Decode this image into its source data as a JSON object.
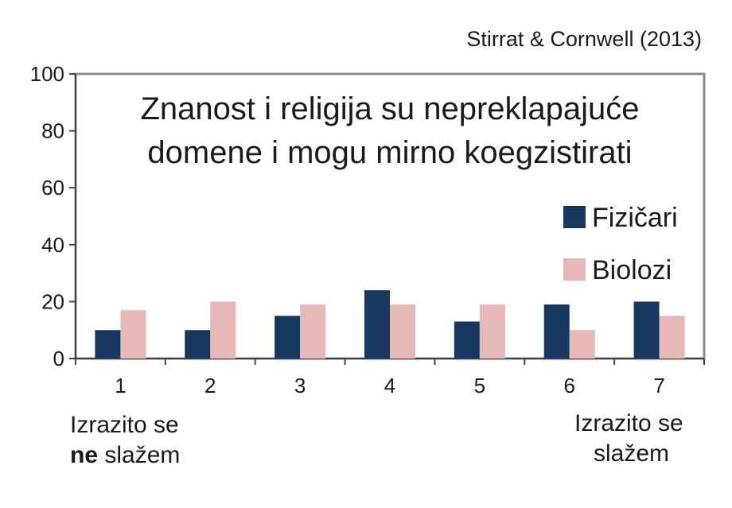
{
  "source": "Stirrat & Cornwell (2013)",
  "chart_data": {
    "type": "bar",
    "title": "Znanost i religija su nepreklapajuće domene i mogu mirno koegzistirati",
    "title_lines": [
      "Znanost i religija su nepreklapajuće",
      "domene i mogu mirno koegzistirati"
    ],
    "categories": [
      "1",
      "2",
      "3",
      "4",
      "5",
      "6",
      "7"
    ],
    "series": [
      {
        "name": "Fizičari",
        "color": "#17375e",
        "values": [
          10,
          10,
          15,
          24,
          13,
          19,
          20
        ]
      },
      {
        "name": "Biolozi",
        "color": "#e6b9b8",
        "values": [
          17,
          20,
          19,
          19,
          19,
          10,
          15
        ]
      }
    ],
    "ylim": [
      0,
      100
    ],
    "yticks": [
      0,
      20,
      40,
      60,
      80,
      100
    ],
    "grid": false,
    "legend": "right"
  },
  "notes": {
    "left_line1": "Izrazito se",
    "left_bold": "ne",
    "left_rest": " slažem",
    "right_line1": "Izrazito se",
    "right_line2": "slažem"
  }
}
